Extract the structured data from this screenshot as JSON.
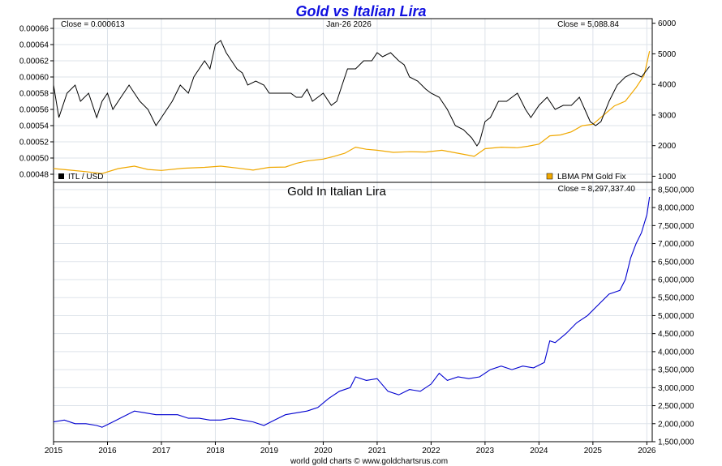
{
  "chart_data": [
    {
      "type": "line",
      "title": "Gold vs Italian Lira",
      "date_label": "Jan-26  2026",
      "close_left": "Close = 0.000613",
      "close_right": "Close = 5,088.84",
      "x_range": [
        2015,
        2026.1
      ],
      "ylim_left": [
        0.00047,
        0.000672
      ],
      "ylim_right": [
        800,
        6150
      ],
      "y_ticks_left": [
        "0.00048",
        "0.00050",
        "0.00052",
        "0.00054",
        "0.00056",
        "0.00058",
        "0.00060",
        "0.00062",
        "0.00064",
        "0.00066"
      ],
      "y_ticks_right": [
        "1000",
        "2000",
        "3000",
        "4000",
        "5000",
        "6000"
      ],
      "series": [
        {
          "name": "ITL / USD",
          "axis": "left",
          "color": "#000000",
          "x": [
            2015.0,
            2015.1,
            2015.25,
            2015.4,
            2015.5,
            2015.65,
            2015.8,
            2015.9,
            2016.0,
            2016.1,
            2016.3,
            2016.4,
            2016.5,
            2016.6,
            2016.75,
            2016.9,
            2017.0,
            2017.2,
            2017.35,
            2017.5,
            2017.6,
            2017.7,
            2017.8,
            2017.9,
            2018.0,
            2018.1,
            2018.2,
            2018.3,
            2018.4,
            2018.5,
            2018.6,
            2018.75,
            2018.9,
            2019.0,
            2019.2,
            2019.4,
            2019.5,
            2019.6,
            2019.7,
            2019.8,
            2019.9,
            2020.0,
            2020.15,
            2020.25,
            2020.35,
            2020.45,
            2020.6,
            2020.75,
            2020.9,
            2021.0,
            2021.1,
            2021.25,
            2021.4,
            2021.5,
            2021.6,
            2021.75,
            2021.9,
            2022.0,
            2022.15,
            2022.3,
            2022.45,
            2022.6,
            2022.75,
            2022.85,
            2022.9,
            2023.0,
            2023.1,
            2023.25,
            2023.4,
            2023.5,
            2023.6,
            2023.75,
            2023.85,
            2024.0,
            2024.15,
            2024.3,
            2024.45,
            2024.6,
            2024.75,
            2024.85,
            2024.95,
            2025.05,
            2025.15,
            2025.3,
            2025.45,
            2025.6,
            2025.75,
            2025.9,
            2026.05
          ],
          "values": [
            0.00059,
            0.00055,
            0.00058,
            0.00059,
            0.00057,
            0.00058,
            0.00055,
            0.00057,
            0.00058,
            0.00056,
            0.00058,
            0.00059,
            0.00058,
            0.00057,
            0.00056,
            0.00054,
            0.00055,
            0.00057,
            0.00059,
            0.00058,
            0.0006,
            0.00061,
            0.00062,
            0.00061,
            0.00064,
            0.000645,
            0.00063,
            0.00062,
            0.00061,
            0.000605,
            0.00059,
            0.000595,
            0.00059,
            0.00058,
            0.00058,
            0.00058,
            0.000575,
            0.000575,
            0.000585,
            0.00057,
            0.000575,
            0.00058,
            0.000565,
            0.00057,
            0.00059,
            0.00061,
            0.00061,
            0.00062,
            0.00062,
            0.00063,
            0.000625,
            0.00063,
            0.00062,
            0.000615,
            0.0006,
            0.000595,
            0.000585,
            0.00058,
            0.000575,
            0.00056,
            0.00054,
            0.000535,
            0.000525,
            0.000515,
            0.00052,
            0.000545,
            0.00055,
            0.00057,
            0.00057,
            0.000575,
            0.00058,
            0.00056,
            0.00055,
            0.000565,
            0.000575,
            0.00056,
            0.000565,
            0.000565,
            0.000575,
            0.00056,
            0.000545,
            0.00054,
            0.000545,
            0.00057,
            0.00059,
            0.0006,
            0.000605,
            0.0006,
            0.000613
          ]
        },
        {
          "name": "LBMA PM Gold Fix",
          "axis": "right",
          "color": "#f0a800",
          "x": [
            2015.0,
            2015.3,
            2015.6,
            2015.9,
            2016.2,
            2016.5,
            2016.75,
            2017.0,
            2017.4,
            2017.8,
            2018.1,
            2018.4,
            2018.7,
            2019.0,
            2019.3,
            2019.5,
            2019.7,
            2020.0,
            2020.2,
            2020.4,
            2020.6,
            2020.8,
            2021.0,
            2021.3,
            2021.6,
            2021.9,
            2022.2,
            2022.5,
            2022.8,
            2023.0,
            2023.3,
            2023.6,
            2023.8,
            2024.0,
            2024.2,
            2024.4,
            2024.6,
            2024.8,
            2025.0,
            2025.2,
            2025.4,
            2025.6,
            2025.8,
            2025.95,
            2026.05
          ],
          "values": [
            1250,
            1200,
            1150,
            1090,
            1250,
            1330,
            1220,
            1190,
            1260,
            1290,
            1330,
            1270,
            1200,
            1290,
            1300,
            1420,
            1500,
            1560,
            1650,
            1750,
            1950,
            1880,
            1850,
            1780,
            1800,
            1790,
            1850,
            1750,
            1650,
            1900,
            1950,
            1930,
            1980,
            2050,
            2320,
            2350,
            2450,
            2650,
            2700,
            3000,
            3300,
            3450,
            3900,
            4300,
            5088
          ]
        }
      ]
    },
    {
      "type": "line",
      "title": "Gold In Italian Lira",
      "close_label": "Close = 8,297,337.40",
      "x_range": [
        2015,
        2026.1
      ],
      "ylim": [
        1500000,
        8700000
      ],
      "y_ticks": [
        "1,500,000",
        "2,000,000",
        "2,500,000",
        "3,000,000",
        "3,500,000",
        "4,000,000",
        "4,500,000",
        "5,000,000",
        "5,500,000",
        "6,000,000",
        "6,500,000",
        "7,000,000",
        "7,500,000",
        "8,000,000",
        "8,500,000"
      ],
      "x_ticks": [
        "2015",
        "2016",
        "2017",
        "2018",
        "2019",
        "2020",
        "2021",
        "2022",
        "2023",
        "2024",
        "2025",
        "2026"
      ],
      "series": [
        {
          "name": "Gold In Italian Lira",
          "color": "#0000d0",
          "x": [
            2015.0,
            2015.2,
            2015.4,
            2015.6,
            2015.8,
            2015.9,
            2016.1,
            2016.3,
            2016.5,
            2016.7,
            2016.9,
            2017.1,
            2017.3,
            2017.5,
            2017.7,
            2017.9,
            2018.1,
            2018.3,
            2018.5,
            2018.7,
            2018.9,
            2019.1,
            2019.3,
            2019.5,
            2019.7,
            2019.9,
            2020.1,
            2020.3,
            2020.5,
            2020.6,
            2020.8,
            2021.0,
            2021.2,
            2021.4,
            2021.6,
            2021.8,
            2022.0,
            2022.15,
            2022.3,
            2022.5,
            2022.7,
            2022.9,
            2023.1,
            2023.3,
            2023.5,
            2023.7,
            2023.9,
            2024.1,
            2024.2,
            2024.3,
            2024.5,
            2024.7,
            2024.9,
            2025.1,
            2025.3,
            2025.5,
            2025.6,
            2025.7,
            2025.8,
            2025.9,
            2026.0,
            2026.05
          ],
          "values": [
            2050000,
            2100000,
            2000000,
            2000000,
            1950000,
            1900000,
            2050000,
            2200000,
            2350000,
            2300000,
            2250000,
            2250000,
            2250000,
            2150000,
            2150000,
            2100000,
            2100000,
            2150000,
            2100000,
            2050000,
            1950000,
            2100000,
            2250000,
            2300000,
            2350000,
            2450000,
            2700000,
            2900000,
            3000000,
            3300000,
            3200000,
            3250000,
            2900000,
            2800000,
            2950000,
            2900000,
            3100000,
            3400000,
            3200000,
            3300000,
            3250000,
            3300000,
            3500000,
            3600000,
            3500000,
            3600000,
            3550000,
            3700000,
            4300000,
            4250000,
            4500000,
            4800000,
            5000000,
            5300000,
            5600000,
            5700000,
            6000000,
            6600000,
            7000000,
            7300000,
            7800000,
            8297337
          ]
        }
      ]
    }
  ],
  "footer": "world gold charts © www.goldchartsrus.com"
}
